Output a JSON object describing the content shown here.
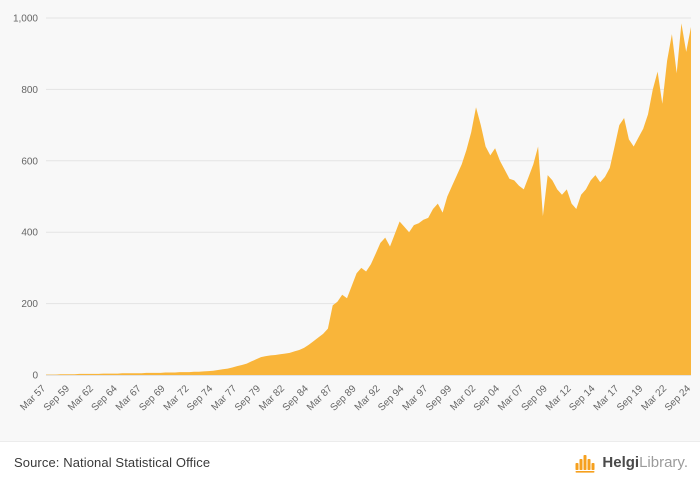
{
  "footer": {
    "source": "Source: National Statistical Office",
    "logo": {
      "bold": "Helgi",
      "light": "Library",
      "suffix": "."
    }
  },
  "chart_data": {
    "type": "area",
    "title": "",
    "xlabel": "",
    "ylabel": "",
    "ylim": [
      0,
      1000
    ],
    "grid": true,
    "legend_position": "none",
    "frequency": "semiannual",
    "series_name": "value",
    "series_color": "#f9b53a",
    "grid_color": "#e4e4e4",
    "axis_line_color": "#cccccc",
    "axis_label_color": "#666666",
    "background": "#f8f8f8",
    "yticks": [
      {
        "value": 0,
        "label": "0"
      },
      {
        "value": 200,
        "label": "200"
      },
      {
        "value": 400,
        "label": "400"
      },
      {
        "value": 600,
        "label": "600"
      },
      {
        "value": 800,
        "label": "800"
      },
      {
        "value": 1000,
        "label": "1,000"
      }
    ],
    "tick_step": 5,
    "x_tick_labels": [
      "Mar 57",
      "Sep 59",
      "Mar 62",
      "Sep 64",
      "Mar 67",
      "Sep 69",
      "Mar 72",
      "Sep 74",
      "Mar 77",
      "Sep 79",
      "Mar 82",
      "Sep 84",
      "Mar 87",
      "Sep 89",
      "Mar 92",
      "Sep 94",
      "Mar 97",
      "Sep 99",
      "Mar 02",
      "Sep 04",
      "Mar 07",
      "Sep 09",
      "Mar 12",
      "Sep 14",
      "Mar 17",
      "Sep 19",
      "Mar 22",
      "Sep 24"
    ],
    "values": [
      1,
      1,
      1,
      2,
      2,
      2,
      2,
      3,
      3,
      3,
      3,
      3,
      4,
      4,
      4,
      4,
      5,
      5,
      5,
      5,
      5,
      6,
      6,
      6,
      6,
      7,
      7,
      7,
      8,
      8,
      8,
      9,
      9,
      10,
      11,
      12,
      14,
      16,
      18,
      21,
      25,
      28,
      32,
      38,
      44,
      50,
      53,
      55,
      56,
      58,
      60,
      62,
      66,
      70,
      76,
      85,
      95,
      105,
      115,
      130,
      195,
      205,
      225,
      215,
      250,
      285,
      300,
      290,
      310,
      340,
      370,
      385,
      360,
      395,
      430,
      415,
      400,
      420,
      425,
      435,
      440,
      465,
      480,
      455,
      500,
      530,
      560,
      590,
      630,
      680,
      750,
      700,
      640,
      615,
      635,
      600,
      575,
      550,
      545,
      530,
      520,
      555,
      590,
      640,
      445,
      560,
      545,
      520,
      505,
      520,
      480,
      465,
      505,
      520,
      545,
      560,
      540,
      555,
      580,
      640,
      700,
      720,
      660,
      640,
      665,
      690,
      730,
      800,
      850,
      760,
      880,
      955,
      845,
      985,
      905,
      975
    ]
  }
}
